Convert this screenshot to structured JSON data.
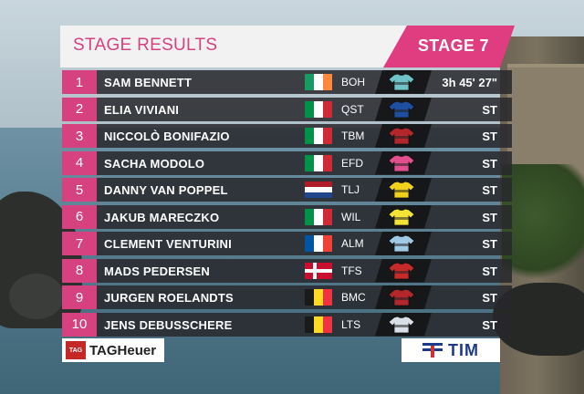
{
  "header": {
    "title": "STAGE RESULTS",
    "stage": "STAGE 7"
  },
  "results": [
    {
      "pos": "1",
      "name": "SAM BENNETT",
      "flag": [
        "#169b62",
        "#ffffff",
        "#ff883e"
      ],
      "team": "BOH",
      "jersey": "#6fc3c6",
      "time": "3h 45' 27\""
    },
    {
      "pos": "2",
      "name": "ELIA VIVIANI",
      "flag": [
        "#009246",
        "#ffffff",
        "#ce2b37"
      ],
      "team": "QST",
      "jersey": "#1f4fa0",
      "time": "ST"
    },
    {
      "pos": "3",
      "name": "NICCOLÒ BONIFAZIO",
      "flag": [
        "#009246",
        "#ffffff",
        "#ce2b37"
      ],
      "team": "TBM",
      "jersey": "#b3262b",
      "time": "ST"
    },
    {
      "pos": "4",
      "name": "SACHA MODOLO",
      "flag": [
        "#009246",
        "#ffffff",
        "#ce2b37"
      ],
      "team": "EFD",
      "jersey": "#e24f8f",
      "time": "ST"
    },
    {
      "pos": "5",
      "name": "DANNY VAN POPPEL",
      "flag": [
        "#ae1c28",
        "#ffffff",
        "#21468b"
      ],
      "team": "TLJ",
      "jersey": "#f0d21c",
      "time": "ST"
    },
    {
      "pos": "6",
      "name": "JAKUB MARECZKO",
      "flag": [
        "#009246",
        "#ffffff",
        "#ce2b37"
      ],
      "team": "WIL",
      "jersey": "#f4e235",
      "time": "ST"
    },
    {
      "pos": "7",
      "name": "CLEMENT VENTURINI",
      "flag": [
        "#0055a4",
        "#ffffff",
        "#ef4135"
      ],
      "team": "ALM",
      "jersey": "#9fc9e4",
      "time": "ST"
    },
    {
      "pos": "8",
      "name": "MADS PEDERSEN",
      "flag": [
        "#c8102e",
        "#ffffff",
        "#c8102e"
      ],
      "team": "TFS",
      "jersey": "#c62a2a",
      "time": "ST"
    },
    {
      "pos": "9",
      "name": "JURGEN ROELANDTS",
      "flag": [
        "#1a1a1a",
        "#fdda24",
        "#ef3340"
      ],
      "team": "BMC",
      "jersey": "#b3262b",
      "time": "ST"
    },
    {
      "pos": "10",
      "name": "JENS DEBUSSCHERE",
      "flag": [
        "#1a1a1a",
        "#fdda24",
        "#ef3340"
      ],
      "team": "LTS",
      "jersey": "#d9dfe6",
      "time": "ST"
    }
  ],
  "sponsors": {
    "left": "TAGHeuer",
    "left_badge": "TAG",
    "right": "TIM"
  },
  "colors": {
    "accent": "#d6417f",
    "row_bg": "#2a2a2e"
  }
}
